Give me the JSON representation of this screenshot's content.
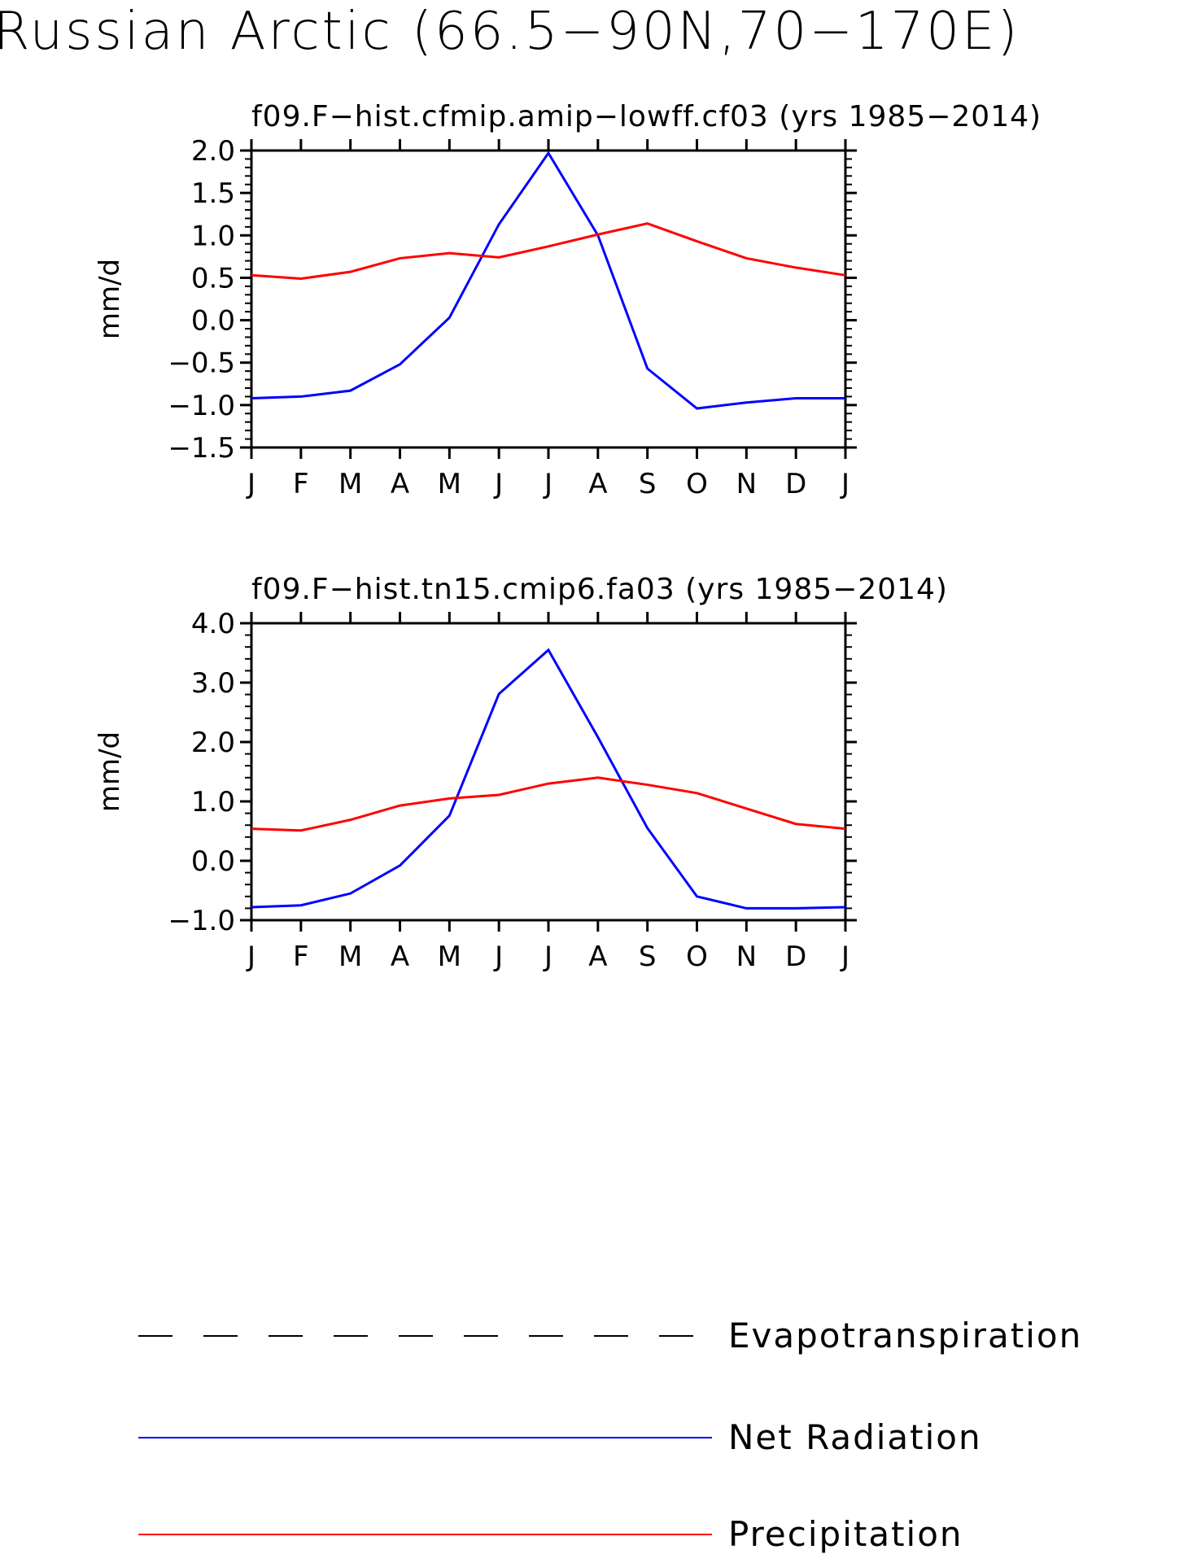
{
  "title": "Russian Arctic (66.5−90N,70−170E)",
  "colors": {
    "net_radiation": "#0000ff",
    "precipitation": "#ff0000",
    "evapotranspiration": "#000000"
  },
  "legend": [
    {
      "label": "Evapotranspiration",
      "style": "dashed",
      "color": "#000000"
    },
    {
      "label": "Net Radiation",
      "style": "solid",
      "color": "#0000ff"
    },
    {
      "label": "Precipitation",
      "style": "solid",
      "color": "#ff0000"
    }
  ],
  "chart_data": [
    {
      "type": "line",
      "title": "f09.F−hist.cfmip.amip−lowff.cf03 (yrs 1985−2014)",
      "ylabel": "mm/d",
      "xlabel": "",
      "categories": [
        "J",
        "F",
        "M",
        "A",
        "M",
        "J",
        "J",
        "A",
        "S",
        "O",
        "N",
        "D",
        "J"
      ],
      "ylim": [
        -1.5,
        2.0
      ],
      "yticks": [
        "−1.5",
        "−1.0",
        "−0.5",
        "0.0",
        "0.5",
        "1.0",
        "1.5",
        "2.0"
      ],
      "ytick_values": [
        -1.5,
        -1.0,
        -0.5,
        0.0,
        0.5,
        1.0,
        1.5,
        2.0
      ],
      "legend_position": "bottom",
      "series": [
        {
          "name": "Net Radiation",
          "color": "#0000ff",
          "values": [
            -0.92,
            -0.9,
            -0.83,
            -0.52,
            0.03,
            1.13,
            1.97,
            1.0,
            -0.57,
            -1.04,
            -0.97,
            -0.92,
            -0.92
          ]
        },
        {
          "name": "Precipitation",
          "color": "#ff0000",
          "values": [
            0.53,
            0.49,
            0.57,
            0.73,
            0.79,
            0.74,
            0.87,
            1.01,
            1.14,
            0.93,
            0.73,
            0.62,
            0.53
          ]
        }
      ]
    },
    {
      "type": "line",
      "title": "f09.F−hist.tn15.cmip6.fa03 (yrs 1985−2014)",
      "ylabel": "mm/d",
      "xlabel": "",
      "categories": [
        "J",
        "F",
        "M",
        "A",
        "M",
        "J",
        "J",
        "A",
        "S",
        "O",
        "N",
        "D",
        "J"
      ],
      "ylim": [
        -1.0,
        4.0
      ],
      "yticks": [
        "−1.0",
        "0.0",
        "1.0",
        "2.0",
        "3.0",
        "4.0"
      ],
      "ytick_values": [
        -1.0,
        0.0,
        1.0,
        2.0,
        3.0,
        4.0
      ],
      "legend_position": "bottom",
      "series": [
        {
          "name": "Net Radiation",
          "color": "#0000ff",
          "values": [
            -0.78,
            -0.75,
            -0.55,
            -0.08,
            0.76,
            2.81,
            3.55,
            2.08,
            0.55,
            -0.6,
            -0.8,
            -0.8,
            -0.78
          ]
        },
        {
          "name": "Precipitation",
          "color": "#ff0000",
          "values": [
            0.54,
            0.51,
            0.69,
            0.93,
            1.05,
            1.11,
            1.3,
            1.4,
            1.28,
            1.14,
            0.88,
            0.62,
            0.54
          ]
        }
      ]
    }
  ]
}
